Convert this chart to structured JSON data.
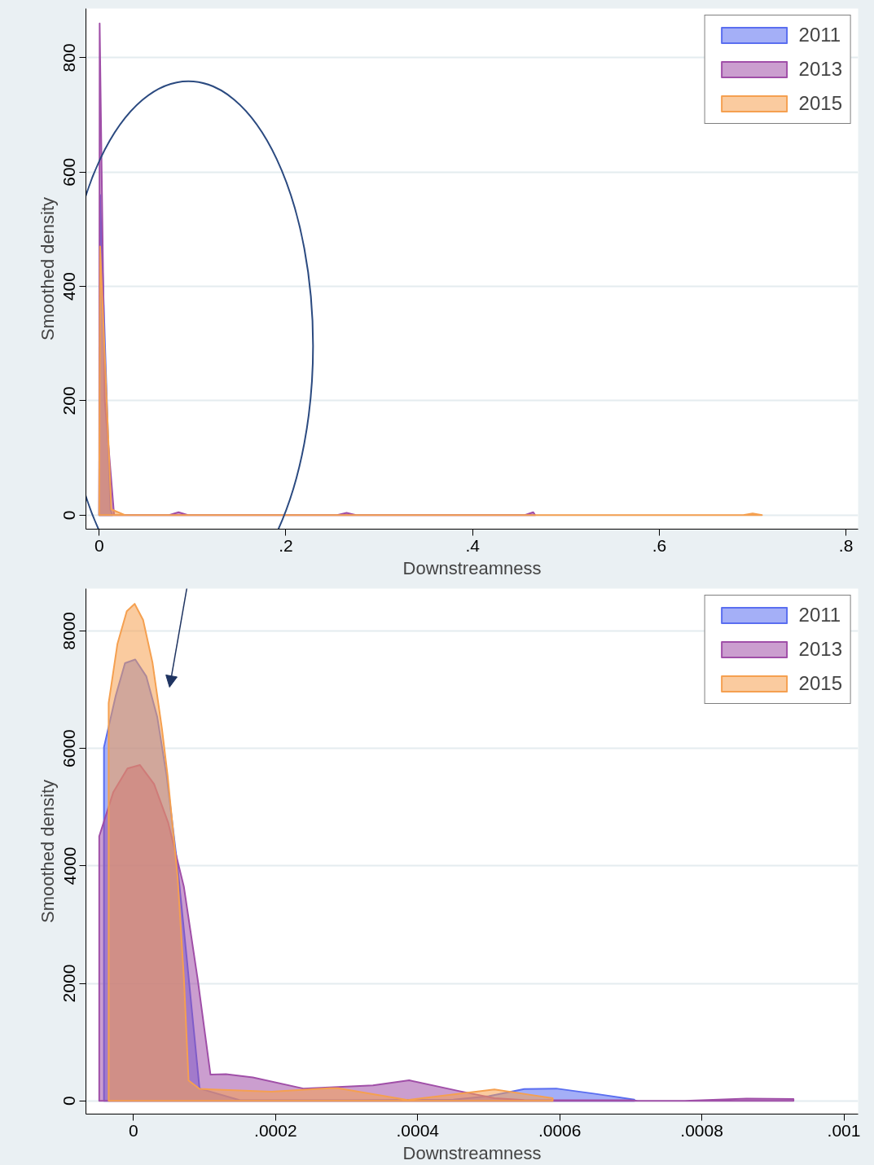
{
  "chart_data": [
    {
      "type": "area",
      "xlabel": "Downstreamness",
      "ylabel": "Smoothed density",
      "xlim": [
        -0.0142,
        0.813
      ],
      "ylim": [
        -24.5,
        886
      ],
      "xticks": [
        0,
        {
          "value": 0.2,
          "label": ".2"
        },
        {
          "value": 0.4,
          "label": ".4"
        },
        {
          "value": 0.6,
          "label": ".6"
        },
        {
          "value": 0.8,
          "label": ".8"
        }
      ],
      "yticks": [
        0,
        200,
        400,
        600,
        800
      ],
      "grid": "y",
      "legend": "top right",
      "series": [
        {
          "name": "2011",
          "color": "#5a6ef0",
          "x": [
            0,
            0.001,
            0.012,
            0.014
          ],
          "values": [
            0,
            560,
            10,
            0
          ]
        },
        {
          "name": "2013",
          "color": "#a04fa8",
          "x": [
            0,
            0.0005,
            0.006,
            0.016,
            0.075,
            0.085,
            0.095,
            0.255,
            0.265,
            0.275,
            0.456,
            0.465,
            0.467
          ],
          "values": [
            0,
            860,
            200,
            0,
            0,
            5,
            0,
            0,
            4,
            0,
            0,
            5,
            0
          ]
        },
        {
          "name": "2015",
          "color": "#f5a050",
          "x": [
            0,
            0.001,
            0.013,
            0.028,
            0.69,
            0.7,
            0.71
          ],
          "values": [
            0,
            470,
            10,
            0,
            0,
            3,
            0
          ]
        }
      ]
    },
    {
      "type": "area",
      "xlabel": "Downstreamness",
      "ylabel": "Smoothed density",
      "xlim": [
        -6.7e-05,
        0.00102
      ],
      "ylim": [
        -225,
        8719
      ],
      "xticks": [
        0,
        {
          "value": 0.0002,
          "label": ".0002"
        },
        {
          "value": 0.0004,
          "label": ".0004"
        },
        {
          "value": 0.0006,
          "label": ".0006"
        },
        {
          "value": 0.0008,
          "label": ".0008"
        },
        {
          "value": 0.001,
          "label": ".001"
        }
      ],
      "yticks": [
        0,
        2000,
        4000,
        6000,
        8000
      ],
      "grid": "y",
      "legend": "top right",
      "series": [
        {
          "name": "2011",
          "color": "#5a6ef0",
          "x": [
            -4.16e-05,
            -4.16e-05,
            -2.5e-05,
            -1.2e-05,
            2.4e-06,
            1.79e-05,
            3.33e-05,
            4.66e-05,
            6.2e-05,
            7.53e-05,
            9.29e-05,
            0.00015,
            0.0003,
            0.00045,
            0.0005,
            0.00055,
            0.000595,
            0.00065,
            0.000705,
            0.000705
          ],
          "values": [
            0,
            6020,
            6900,
            7450,
            7513,
            7227,
            6540,
            5536,
            3988,
            2382,
            210,
            10,
            10,
            20,
            80,
            200,
            210,
            120,
            20,
            0
          ]
        },
        {
          "name": "2013",
          "color": "#a04fa8",
          "x": [
            -4.83e-05,
            -4.83e-05,
            -2.84e-05,
            -8.5e-06,
            9.1e-06,
            2.89e-05,
            4.88e-05,
            7.09e-05,
            9.07e-05,
            0.0001083,
            0.0001302,
            0.000168,
            0.000239,
            0.000337,
            0.000388,
            0.000459,
            0.000508,
            0.00055,
            0.0006,
            0.0007,
            0.00071,
            0.000776,
            0.000863,
            0.000929,
            0.000929
          ],
          "values": [
            0,
            4503,
            5257,
            5658,
            5716,
            5393,
            4734,
            3643,
            2038,
            449,
            453,
            400,
            210,
            265,
            350,
            165,
            45,
            15,
            10,
            10,
            0,
            0,
            37,
            30,
            0
          ]
        },
        {
          "name": "2015",
          "color": "#f5a050",
          "x": [
            -3.5e-05,
            -3.5e-05,
            -2.27e-05,
            -9.5e-06,
            1.6e-06,
            1.35e-05,
            2.67e-05,
            4e-05,
            4.8e-05,
            6.2e-05,
            7.09e-05,
            7.75e-05,
            9.29e-05,
            0.000194,
            0.000276,
            0.000288,
            0.000386,
            0.000508,
            0.000557,
            0.00059,
            0.00059
          ],
          "values": [
            0,
            6772,
            7775,
            8334,
            8460,
            8184,
            7460,
            6337,
            5536,
            3820,
            2097,
            348,
            204,
            157,
            216,
            214,
            15,
            195,
            106,
            45,
            0
          ]
        }
      ]
    }
  ]
}
